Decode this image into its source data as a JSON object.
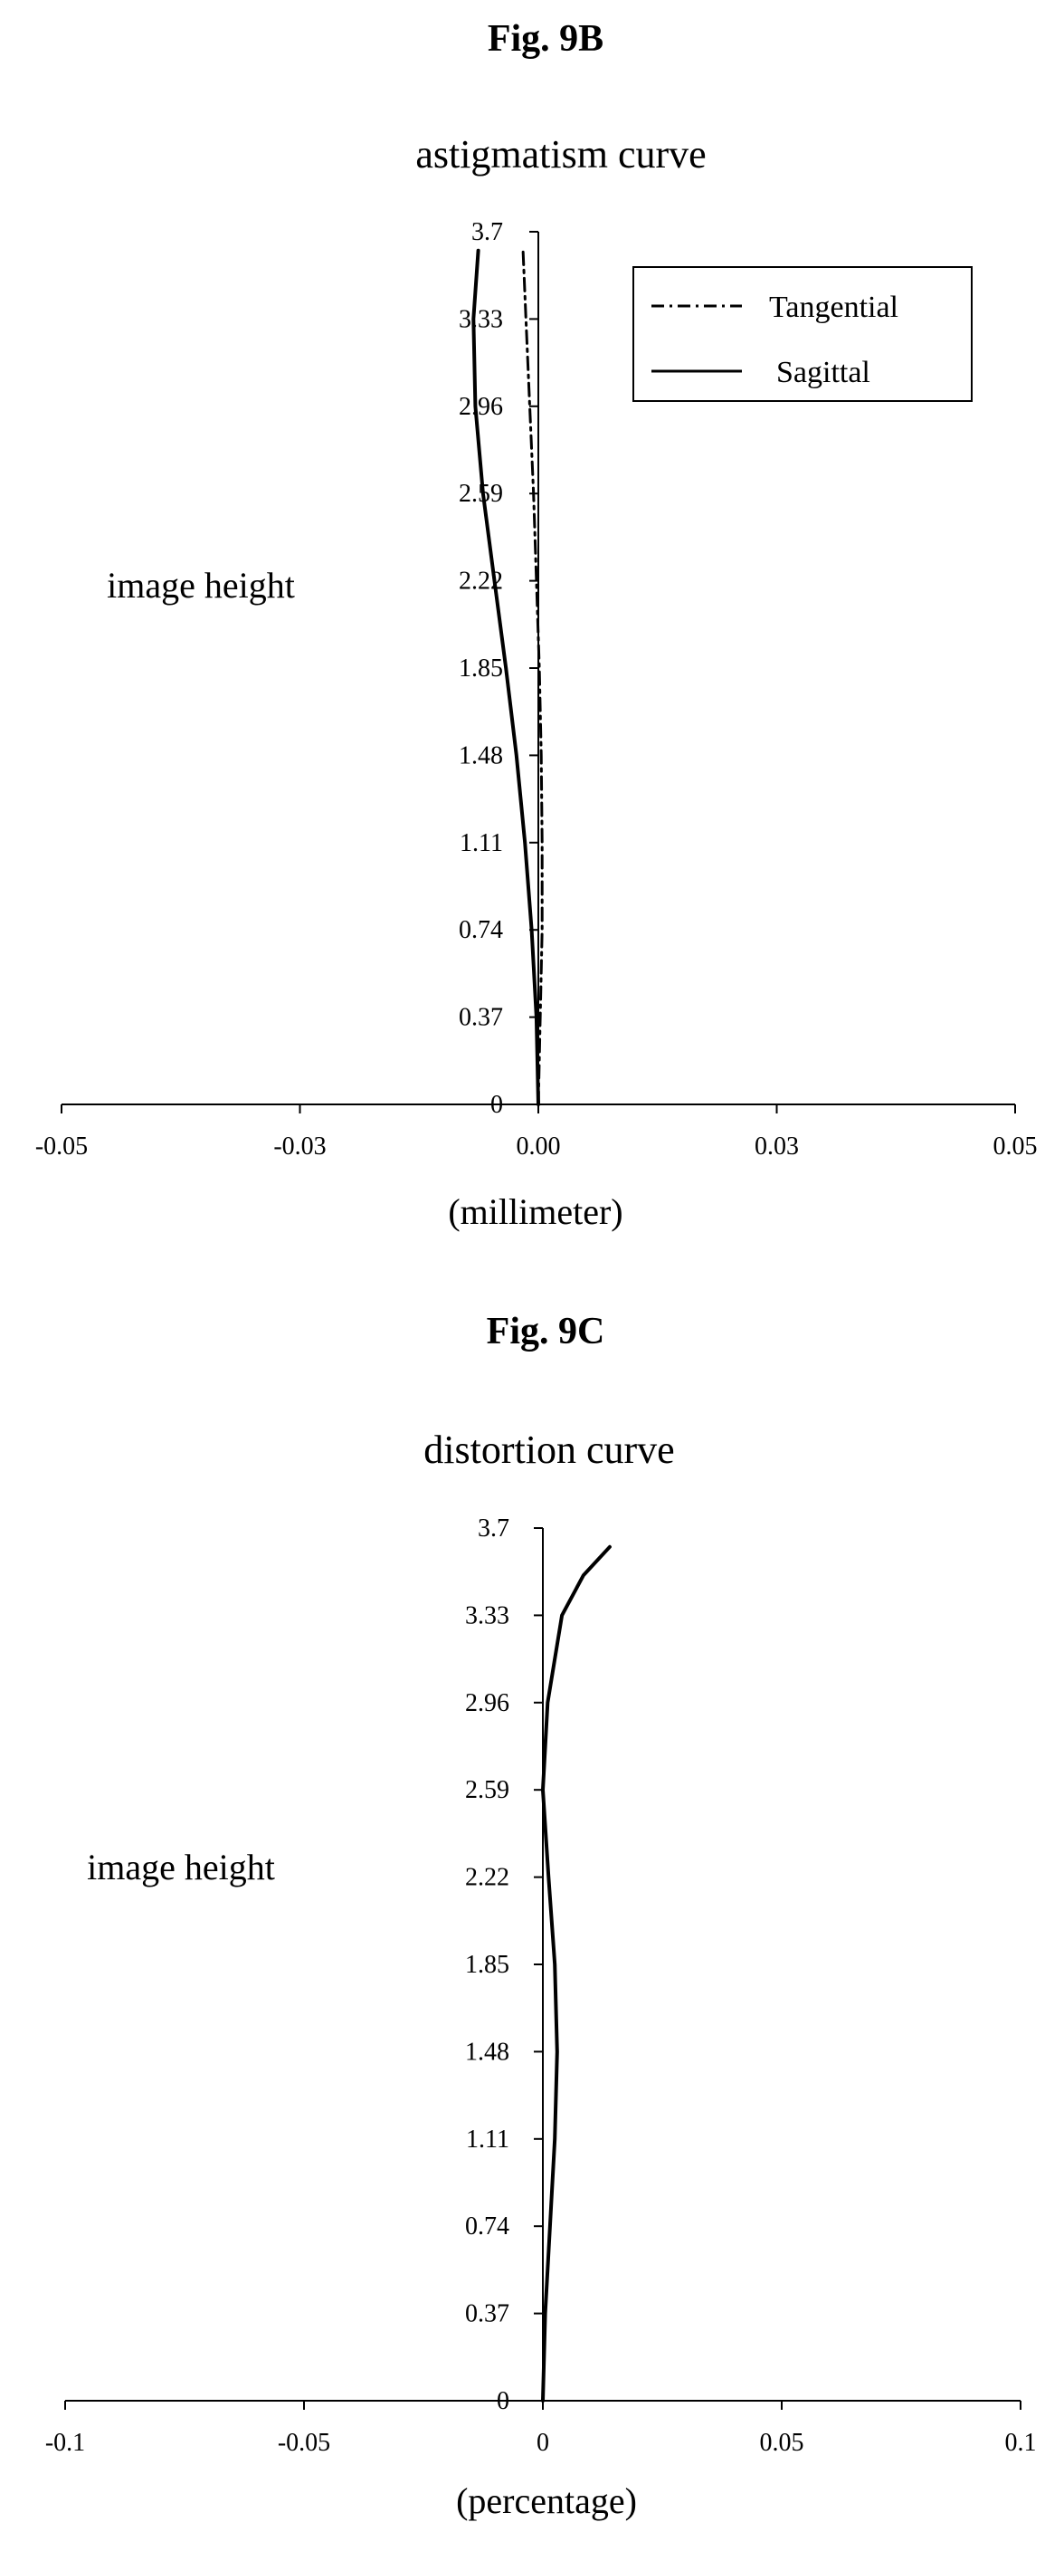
{
  "figures": [
    {
      "label": "Fig. 9B"
    },
    {
      "label": "Fig. 9C"
    }
  ],
  "chart_data": [
    {
      "type": "line",
      "title": "astigmatism curve",
      "xlabel": "(millimeter)",
      "ylabel": "image height",
      "xlim": [
        -0.05,
        0.05
      ],
      "ylim": [
        0,
        3.7
      ],
      "xticks": [
        "-0.05",
        "-0.03",
        "0.00",
        "0.03",
        "0.05"
      ],
      "xtick_values": [
        -0.05,
        -0.025,
        0,
        0.025,
        0.05
      ],
      "yticks": [
        "0",
        "0.37",
        "0.74",
        "1.11",
        "1.48",
        "1.85",
        "2.22",
        "2.59",
        "2.96",
        "3.33",
        "3.7"
      ],
      "ytick_values": [
        0,
        0.37,
        0.74,
        1.11,
        1.48,
        1.85,
        2.22,
        2.59,
        2.96,
        3.33,
        3.7
      ],
      "grid": false,
      "legend_position": "top-right",
      "series": [
        {
          "name": "Tangential",
          "style": "dashdot",
          "color": "#000000",
          "x": [
            0,
            0.0002,
            0.0004,
            0.0004,
            0.0003,
            0.0001,
            -0.0002,
            -0.0005,
            -0.0009,
            -0.0013,
            -0.0016
          ],
          "y": [
            0,
            0.37,
            0.74,
            1.11,
            1.48,
            1.85,
            2.22,
            2.59,
            2.96,
            3.33,
            3.62
          ]
        },
        {
          "name": "Sagittal",
          "style": "solid",
          "color": "#000000",
          "x": [
            0,
            -0.0002,
            -0.0007,
            -0.0014,
            -0.0023,
            -0.0034,
            -0.0046,
            -0.0058,
            -0.0066,
            -0.0068,
            -0.0063
          ],
          "y": [
            0,
            0.37,
            0.74,
            1.11,
            1.48,
            1.85,
            2.22,
            2.59,
            2.96,
            3.33,
            3.62
          ]
        }
      ]
    },
    {
      "type": "line",
      "title": "distortion curve",
      "xlabel": "(percentage)",
      "ylabel": "image height",
      "xlim": [
        -0.1,
        0.1
      ],
      "ylim": [
        0,
        3.7
      ],
      "xticks": [
        "-0.1",
        "-0.05",
        "0",
        "0.05",
        "0.1"
      ],
      "xtick_values": [
        -0.1,
        -0.05,
        0,
        0.05,
        0.1
      ],
      "yticks": [
        "0",
        "0.37",
        "0.74",
        "1.11",
        "1.48",
        "1.85",
        "2.22",
        "2.59",
        "2.96",
        "3.33",
        "3.7"
      ],
      "ytick_values": [
        0,
        0.37,
        0.74,
        1.11,
        1.48,
        1.85,
        2.22,
        2.59,
        2.96,
        3.33,
        3.7
      ],
      "grid": false,
      "series": [
        {
          "style": "solid",
          "color": "#000000",
          "x": [
            0,
            0.0005,
            0.0015,
            0.0025,
            0.003,
            0.0025,
            0.0012,
            0,
            0.001,
            0.004,
            0.0085,
            0.014
          ],
          "y": [
            0,
            0.37,
            0.74,
            1.11,
            1.48,
            1.85,
            2.22,
            2.59,
            2.96,
            3.33,
            3.5,
            3.62
          ]
        }
      ]
    }
  ]
}
